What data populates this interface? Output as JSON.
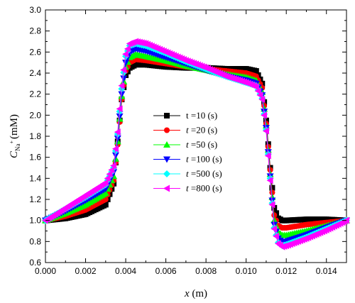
{
  "chart_data": {
    "type": "line",
    "xlabel": "x (m)",
    "xlabel_var": "x",
    "xlabel_unit": " (m)",
    "ylabel_main": "C",
    "ylabel_sub": "Na",
    "ylabel_sup": "+",
    "ylabel_unit": "(mM)",
    "xlim": [
      0.0,
      0.015
    ],
    "ylim": [
      0.6,
      3.0
    ],
    "xticks": [
      "0.000",
      "0.002",
      "0.004",
      "0.006",
      "0.008",
      "0.010",
      "0.012",
      "0.014"
    ],
    "yticks": [
      "0.6",
      "0.8",
      "1.0",
      "1.2",
      "1.4",
      "1.6",
      "1.8",
      "2.0",
      "2.2",
      "2.4",
      "2.6",
      "2.8",
      "3.0"
    ],
    "grid": false,
    "legend_position": "center-right",
    "series": [
      {
        "name": "t =10 (s)",
        "legend_prefix": "t",
        "legend_suffix": " =10 (s)",
        "italic_t": false,
        "color": "#000000",
        "marker": "square",
        "x": [
          0.0,
          0.001,
          0.002,
          0.003,
          0.0034,
          0.0036,
          0.0038,
          0.004,
          0.0042,
          0.0045,
          0.005,
          0.006,
          0.007,
          0.008,
          0.009,
          0.01,
          0.0105,
          0.0108,
          0.011,
          0.0112,
          0.0114,
          0.0116,
          0.0118,
          0.012,
          0.013,
          0.014,
          0.015
        ],
        "y": [
          1.0,
          1.02,
          1.06,
          1.15,
          1.35,
          1.75,
          2.15,
          2.38,
          2.45,
          2.48,
          2.48,
          2.46,
          2.45,
          2.45,
          2.44,
          2.44,
          2.42,
          2.3,
          1.95,
          1.5,
          1.12,
          1.02,
          1.0,
          1.0,
          1.01,
          1.01,
          1.0
        ]
      },
      {
        "name": "t =20 (s)",
        "legend_prefix": "t",
        "legend_suffix": " =20 (s)",
        "italic_t": true,
        "color": "#ff0000",
        "marker": "circle",
        "x": [
          0.0,
          0.001,
          0.002,
          0.003,
          0.0034,
          0.0036,
          0.0038,
          0.004,
          0.0042,
          0.0045,
          0.005,
          0.006,
          0.007,
          0.008,
          0.009,
          0.01,
          0.0105,
          0.0108,
          0.011,
          0.0112,
          0.0114,
          0.0116,
          0.0118,
          0.012,
          0.013,
          0.014,
          0.015
        ],
        "y": [
          1.0,
          1.04,
          1.1,
          1.2,
          1.38,
          1.72,
          2.15,
          2.42,
          2.5,
          2.53,
          2.52,
          2.49,
          2.46,
          2.44,
          2.42,
          2.4,
          2.37,
          2.26,
          1.92,
          1.48,
          1.05,
          0.95,
          0.93,
          0.93,
          0.96,
          0.98,
          1.0
        ]
      },
      {
        "name": "t =50 (s)",
        "legend_prefix": "t",
        "legend_suffix": " =50 (s)",
        "italic_t": true,
        "color": "#00ff00",
        "marker": "triangle-up",
        "x": [
          0.0,
          0.001,
          0.002,
          0.003,
          0.0034,
          0.0036,
          0.0038,
          0.004,
          0.0042,
          0.0045,
          0.005,
          0.006,
          0.007,
          0.008,
          0.009,
          0.01,
          0.0105,
          0.0108,
          0.011,
          0.0112,
          0.0114,
          0.0116,
          0.0118,
          0.012,
          0.013,
          0.014,
          0.015
        ],
        "y": [
          1.0,
          1.07,
          1.15,
          1.26,
          1.42,
          1.75,
          2.18,
          2.46,
          2.55,
          2.58,
          2.56,
          2.52,
          2.47,
          2.43,
          2.39,
          2.36,
          2.33,
          2.22,
          1.9,
          1.44,
          1.0,
          0.89,
          0.86,
          0.86,
          0.9,
          0.95,
          1.0
        ]
      },
      {
        "name": "t =100 (s)",
        "legend_prefix": "t",
        "legend_suffix": " =100 (s)",
        "italic_t": true,
        "color": "#0000ff",
        "marker": "triangle-down",
        "x": [
          0.0,
          0.001,
          0.002,
          0.003,
          0.0034,
          0.0036,
          0.0038,
          0.004,
          0.0042,
          0.0045,
          0.005,
          0.006,
          0.007,
          0.008,
          0.009,
          0.01,
          0.0105,
          0.0108,
          0.011,
          0.0112,
          0.0114,
          0.0116,
          0.0118,
          0.012,
          0.013,
          0.014,
          0.015
        ],
        "y": [
          1.0,
          1.09,
          1.19,
          1.3,
          1.46,
          1.78,
          2.2,
          2.5,
          2.6,
          2.63,
          2.61,
          2.55,
          2.49,
          2.43,
          2.37,
          2.33,
          2.3,
          2.19,
          1.88,
          1.42,
          0.96,
          0.83,
          0.79,
          0.8,
          0.86,
          0.93,
          1.0
        ]
      },
      {
        "name": "t =500 (s)",
        "legend_prefix": "t",
        "legend_suffix": " =500 (s)",
        "italic_t": true,
        "color": "#00ffff",
        "marker": "diamond",
        "x": [
          0.0,
          0.001,
          0.002,
          0.003,
          0.0034,
          0.0036,
          0.0038,
          0.004,
          0.0042,
          0.0045,
          0.005,
          0.006,
          0.007,
          0.008,
          0.009,
          0.01,
          0.0105,
          0.0108,
          0.011,
          0.0112,
          0.0114,
          0.0116,
          0.0118,
          0.012,
          0.013,
          0.014,
          0.015
        ],
        "y": [
          1.0,
          1.11,
          1.22,
          1.34,
          1.5,
          1.82,
          2.25,
          2.56,
          2.66,
          2.68,
          2.66,
          2.59,
          2.51,
          2.44,
          2.37,
          2.31,
          2.28,
          2.16,
          1.86,
          1.4,
          0.93,
          0.79,
          0.76,
          0.77,
          0.84,
          0.92,
          1.0
        ]
      },
      {
        "name": "t =800 (s)",
        "legend_prefix": "t",
        "legend_suffix": " =800 (s)",
        "italic_t": true,
        "color": "#ff00ff",
        "marker": "triangle-left",
        "x": [
          0.0,
          0.001,
          0.002,
          0.003,
          0.0034,
          0.0036,
          0.0038,
          0.004,
          0.0042,
          0.0045,
          0.005,
          0.006,
          0.007,
          0.008,
          0.009,
          0.01,
          0.0105,
          0.0108,
          0.011,
          0.0112,
          0.0114,
          0.0116,
          0.0118,
          0.012,
          0.013,
          0.014,
          0.015
        ],
        "y": [
          1.0,
          1.12,
          1.24,
          1.36,
          1.52,
          1.84,
          2.28,
          2.58,
          2.68,
          2.7,
          2.68,
          2.6,
          2.52,
          2.45,
          2.37,
          2.31,
          2.27,
          2.15,
          1.85,
          1.38,
          0.92,
          0.78,
          0.75,
          0.76,
          0.83,
          0.91,
          1.0
        ]
      }
    ]
  }
}
